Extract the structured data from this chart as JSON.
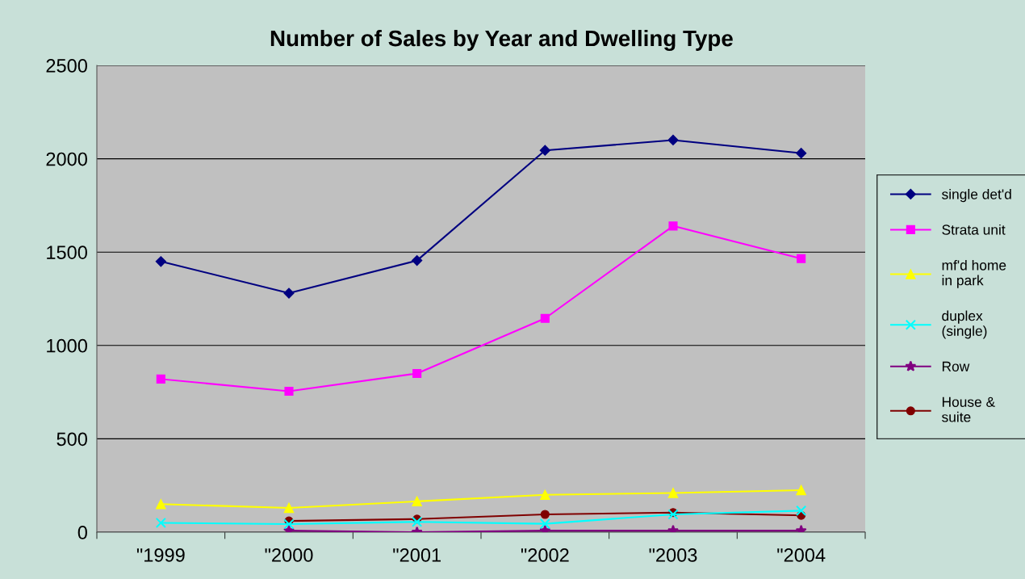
{
  "chart_data": {
    "type": "line",
    "title": "Number of Sales by Year and Dwelling Type",
    "categories": [
      "\"1999",
      "\"2000",
      "\"2001",
      "\"2002",
      "\"2003",
      "\"2004"
    ],
    "ylim": [
      0,
      2500
    ],
    "yticks": [
      0,
      500,
      1000,
      1500,
      2000,
      2500
    ],
    "grid": "y",
    "legend": "right",
    "series": [
      {
        "name": "single det'd",
        "color": "#000080",
        "marker": "diamond",
        "values": [
          1450,
          1280,
          1455,
          2045,
          2100,
          2030
        ]
      },
      {
        "name": "Strata unit",
        "color": "#ff00ff",
        "marker": "square",
        "values": [
          820,
          755,
          850,
          1145,
          1640,
          1465
        ]
      },
      {
        "name": "mf'd home in park",
        "color": "#ffff00",
        "marker": "triangle",
        "values": [
          150,
          130,
          165,
          200,
          210,
          225
        ]
      },
      {
        "name": "duplex (single)",
        "color": "#00ffff",
        "marker": "cross",
        "values": [
          50,
          43,
          55,
          45,
          95,
          115
        ]
      },
      {
        "name": "Row",
        "color": "#800080",
        "marker": "star",
        "values": [
          null,
          8,
          0,
          8,
          8,
          8
        ]
      },
      {
        "name": "House & suite",
        "color": "#800000",
        "marker": "circle",
        "values": [
          null,
          60,
          70,
          95,
          105,
          90
        ]
      }
    ]
  }
}
